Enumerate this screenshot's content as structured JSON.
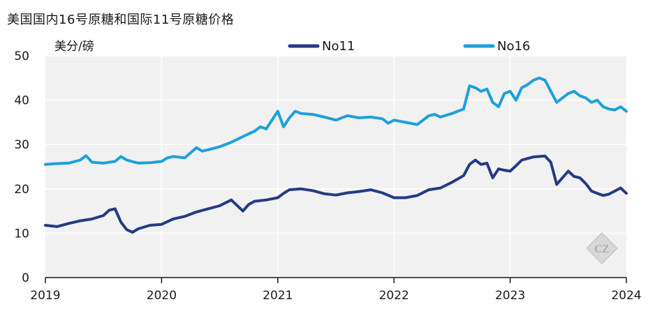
{
  "chart_data": {
    "type": "line",
    "title": "美国国内16号原糖和国际11号原糖价格",
    "ylabel": "美分/磅",
    "xlabel": "",
    "ylim": [
      0,
      50
    ],
    "xlim": [
      2019,
      2024
    ],
    "yticks": [
      0,
      10,
      20,
      30,
      40,
      50
    ],
    "xticks": [
      2019,
      2020,
      2021,
      2022,
      2023,
      2024
    ],
    "legend_position": "top",
    "watermark": "CZ",
    "series": [
      {
        "name": "No11",
        "color": "#233a86",
        "x": [
          2019.0,
          2019.1,
          2019.2,
          2019.3,
          2019.4,
          2019.5,
          2019.55,
          2019.6,
          2019.65,
          2019.7,
          2019.75,
          2019.8,
          2019.9,
          2020.0,
          2020.1,
          2020.2,
          2020.3,
          2020.4,
          2020.5,
          2020.6,
          2020.7,
          2020.75,
          2020.8,
          2020.9,
          2021.0,
          2021.05,
          2021.1,
          2021.2,
          2021.3,
          2021.4,
          2021.5,
          2021.6,
          2021.7,
          2021.8,
          2021.9,
          2022.0,
          2022.1,
          2022.2,
          2022.3,
          2022.4,
          2022.5,
          2022.6,
          2022.65,
          2022.7,
          2022.75,
          2022.8,
          2022.85,
          2022.9,
          2022.95,
          2023.0,
          2023.05,
          2023.1,
          2023.2,
          2023.3,
          2023.35,
          2023.4,
          2023.45,
          2023.5,
          2023.55,
          2023.6,
          2023.65,
          2023.7,
          2023.75,
          2023.8,
          2023.85,
          2023.9,
          2023.95,
          2024.0
        ],
        "values": [
          11.8,
          11.5,
          12.2,
          12.8,
          13.2,
          14.0,
          15.2,
          15.5,
          12.5,
          10.8,
          10.2,
          11.0,
          11.8,
          12.0,
          13.2,
          13.8,
          14.8,
          15.5,
          16.2,
          17.5,
          15.0,
          16.5,
          17.2,
          17.5,
          18.0,
          19.0,
          19.8,
          20.0,
          19.6,
          18.9,
          18.6,
          19.1,
          19.4,
          19.8,
          19.1,
          18.0,
          18.0,
          18.5,
          19.8,
          20.2,
          21.5,
          23.0,
          25.5,
          26.5,
          25.5,
          25.8,
          22.5,
          24.5,
          24.2,
          24.0,
          25.2,
          26.5,
          27.2,
          27.4,
          26.0,
          21.0,
          22.5,
          24.0,
          22.8,
          22.5,
          21.2,
          19.5,
          19.0,
          18.5,
          18.8,
          19.5,
          20.2,
          19.0
        ]
      },
      {
        "name": "No16",
        "color": "#1ea0dc",
        "x": [
          2019.0,
          2019.1,
          2019.2,
          2019.3,
          2019.35,
          2019.4,
          2019.5,
          2019.6,
          2019.65,
          2019.7,
          2019.8,
          2019.9,
          2020.0,
          2020.05,
          2020.1,
          2020.2,
          2020.3,
          2020.35,
          2020.4,
          2020.5,
          2020.6,
          2020.7,
          2020.8,
          2020.85,
          2020.9,
          2020.95,
          2021.0,
          2021.05,
          2021.1,
          2021.15,
          2021.2,
          2021.3,
          2021.4,
          2021.5,
          2021.6,
          2021.7,
          2021.8,
          2021.9,
          2021.95,
          2022.0,
          2022.1,
          2022.2,
          2022.3,
          2022.35,
          2022.4,
          2022.5,
          2022.6,
          2022.65,
          2022.7,
          2022.75,
          2022.8,
          2022.85,
          2022.9,
          2022.95,
          2023.0,
          2023.05,
          2023.1,
          2023.15,
          2023.2,
          2023.25,
          2023.3,
          2023.35,
          2023.4,
          2023.45,
          2023.5,
          2023.55,
          2023.6,
          2023.65,
          2023.7,
          2023.75,
          2023.8,
          2023.85,
          2023.9,
          2023.95,
          2024.0
        ],
        "values": [
          25.5,
          25.7,
          25.8,
          26.5,
          27.5,
          26.0,
          25.8,
          26.2,
          27.3,
          26.5,
          25.8,
          25.9,
          26.2,
          27.0,
          27.3,
          27.0,
          29.3,
          28.5,
          28.8,
          29.5,
          30.5,
          31.8,
          33.0,
          34.0,
          33.5,
          35.5,
          37.5,
          34.0,
          36.0,
          37.5,
          37.0,
          36.8,
          36.2,
          35.5,
          36.5,
          36.0,
          36.2,
          35.8,
          34.8,
          35.5,
          35.0,
          34.5,
          36.5,
          36.8,
          36.2,
          37.0,
          38.0,
          43.2,
          42.8,
          42.0,
          42.5,
          39.5,
          38.5,
          41.5,
          42.0,
          40.0,
          42.8,
          43.5,
          44.5,
          45.0,
          44.5,
          42.0,
          39.5,
          40.5,
          41.5,
          42.0,
          41.0,
          40.5,
          39.5,
          40.0,
          38.5,
          38.0,
          37.8,
          38.5,
          37.5
        ]
      }
    ]
  }
}
